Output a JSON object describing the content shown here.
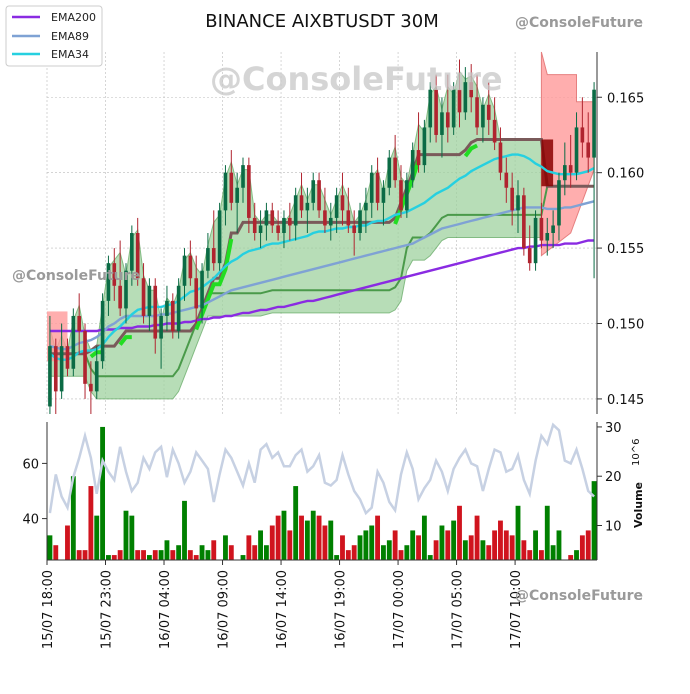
{
  "chart_data": {
    "type": "candlestick",
    "title": "BINANCE AIXBTUSDT 30M",
    "watermark": "@ConsoleFuture",
    "x_tick_labels": [
      "15/07 18:00",
      "15/07 23:00",
      "16/07 04:00",
      "16/07 09:00",
      "16/07 14:00",
      "16/07 19:00",
      "17/07 00:00",
      "17/07 05:00",
      "17/07 10:00"
    ],
    "bar_count": 94,
    "tick_every_bars": 10,
    "price_axis": {
      "range": [
        0.144,
        0.168
      ],
      "ticks": [
        0.145,
        0.15,
        0.155,
        0.16,
        0.165
      ],
      "tick_labels": [
        "0.145",
        "0.150",
        "0.155",
        "0.160",
        "0.165"
      ],
      "side": "right",
      "grid": true
    },
    "volume_axis": {
      "label": "Volume",
      "unit": "10^6",
      "range": [
        3,
        31
      ],
      "ticks": [
        10,
        20,
        30
      ],
      "tick_labels": [
        "10",
        "20",
        "30"
      ],
      "side": "right"
    },
    "oscillator_axis": {
      "range": [
        25,
        75
      ],
      "ticks": [
        40,
        60
      ],
      "tick_labels": [
        "40",
        "60"
      ],
      "side": "left"
    },
    "legend": {
      "placement": "top-left",
      "entries": [
        {
          "name": "EMA200",
          "color": "#8a2be2"
        },
        {
          "name": "EMA89",
          "color": "#7fa2d4"
        },
        {
          "name": "EMA34",
          "color": "#26d0e0"
        }
      ]
    },
    "colors": {
      "up": "#0b6b45",
      "down": "#b0242f",
      "vol_up": "#008000",
      "vol_down": "#d0141e",
      "oscillator": "#c7d1e3",
      "green_zone": "#9fd29f",
      "red_zone": "#ff9a9a",
      "grid": "#bbbbbb"
    },
    "candles": [
      [
        0.1445,
        0.1505,
        0.144,
        0.1485
      ],
      [
        0.1485,
        0.149,
        0.144,
        0.1455
      ],
      [
        0.1455,
        0.15,
        0.145,
        0.1485
      ],
      [
        0.1485,
        0.149,
        0.1465,
        0.147
      ],
      [
        0.147,
        0.151,
        0.1465,
        0.1505
      ],
      [
        0.1505,
        0.152,
        0.148,
        0.1495
      ],
      [
        0.1495,
        0.15,
        0.145,
        0.146
      ],
      [
        0.146,
        0.1475,
        0.144,
        0.1455
      ],
      [
        0.1455,
        0.1485,
        0.145,
        0.1475
      ],
      [
        0.1475,
        0.152,
        0.147,
        0.1515
      ],
      [
        0.1515,
        0.1545,
        0.1505,
        0.154
      ],
      [
        0.154,
        0.155,
        0.1515,
        0.1525
      ],
      [
        0.1525,
        0.1555,
        0.1505,
        0.151
      ],
      [
        0.151,
        0.154,
        0.15,
        0.1535
      ],
      [
        0.1535,
        0.1565,
        0.1525,
        0.156
      ],
      [
        0.156,
        0.157,
        0.1525,
        0.153
      ],
      [
        0.153,
        0.154,
        0.15,
        0.1505
      ],
      [
        0.1505,
        0.153,
        0.1495,
        0.1525
      ],
      [
        0.1525,
        0.153,
        0.148,
        0.149
      ],
      [
        0.149,
        0.151,
        0.147,
        0.1505
      ],
      [
        0.1505,
        0.1525,
        0.1495,
        0.1515
      ],
      [
        0.1515,
        0.152,
        0.149,
        0.1495
      ],
      [
        0.1495,
        0.153,
        0.149,
        0.1525
      ],
      [
        0.1525,
        0.155,
        0.1515,
        0.1545
      ],
      [
        0.1545,
        0.1555,
        0.1525,
        0.153
      ],
      [
        0.153,
        0.1545,
        0.15,
        0.151
      ],
      [
        0.151,
        0.154,
        0.15,
        0.1535
      ],
      [
        0.1535,
        0.156,
        0.153,
        0.155
      ],
      [
        0.155,
        0.1575,
        0.1535,
        0.154
      ],
      [
        0.154,
        0.158,
        0.1535,
        0.1575
      ],
      [
        0.1575,
        0.1605,
        0.1565,
        0.16
      ],
      [
        0.16,
        0.1615,
        0.1575,
        0.158
      ],
      [
        0.158,
        0.16,
        0.156,
        0.159
      ],
      [
        0.159,
        0.161,
        0.158,
        0.1605
      ],
      [
        0.1605,
        0.161,
        0.156,
        0.157
      ],
      [
        0.157,
        0.158,
        0.1555,
        0.156
      ],
      [
        0.156,
        0.1575,
        0.155,
        0.1565
      ],
      [
        0.1565,
        0.158,
        0.1555,
        0.1575
      ],
      [
        0.1575,
        0.158,
        0.156,
        0.1565
      ],
      [
        0.1565,
        0.1575,
        0.1555,
        0.156
      ],
      [
        0.156,
        0.1575,
        0.155,
        0.157
      ],
      [
        0.157,
        0.158,
        0.1555,
        0.1565
      ],
      [
        0.1565,
        0.159,
        0.1555,
        0.1585
      ],
      [
        0.1585,
        0.16,
        0.157,
        0.1575
      ],
      [
        0.1575,
        0.159,
        0.156,
        0.158
      ],
      [
        0.158,
        0.16,
        0.1575,
        0.1595
      ],
      [
        0.1595,
        0.16,
        0.157,
        0.1575
      ],
      [
        0.1575,
        0.159,
        0.156,
        0.1565
      ],
      [
        0.1565,
        0.158,
        0.1555,
        0.157
      ],
      [
        0.157,
        0.159,
        0.156,
        0.1585
      ],
      [
        0.1585,
        0.16,
        0.1565,
        0.1575
      ],
      [
        0.1575,
        0.159,
        0.156,
        0.1565
      ],
      [
        0.1565,
        0.1575,
        0.1545,
        0.156
      ],
      [
        0.156,
        0.158,
        0.1555,
        0.1575
      ],
      [
        0.1575,
        0.159,
        0.156,
        0.158
      ],
      [
        0.158,
        0.1605,
        0.157,
        0.16
      ],
      [
        0.16,
        0.161,
        0.1575,
        0.158
      ],
      [
        0.158,
        0.1595,
        0.1565,
        0.159
      ],
      [
        0.159,
        0.1615,
        0.1585,
        0.161
      ],
      [
        0.161,
        0.1625,
        0.159,
        0.1595
      ],
      [
        0.1595,
        0.1605,
        0.157,
        0.1575
      ],
      [
        0.1575,
        0.16,
        0.157,
        0.1595
      ],
      [
        0.1595,
        0.162,
        0.159,
        0.1615
      ],
      [
        0.1615,
        0.164,
        0.16,
        0.1605
      ],
      [
        0.1605,
        0.1635,
        0.16,
        0.163
      ],
      [
        0.163,
        0.166,
        0.162,
        0.1655
      ],
      [
        0.1655,
        0.1665,
        0.162,
        0.1625
      ],
      [
        0.1625,
        0.165,
        0.161,
        0.164
      ],
      [
        0.164,
        0.1665,
        0.162,
        0.163
      ],
      [
        0.163,
        0.166,
        0.1625,
        0.1655
      ],
      [
        0.1655,
        0.1675,
        0.163,
        0.164
      ],
      [
        0.164,
        0.167,
        0.1635,
        0.166
      ],
      [
        0.166,
        0.1672,
        0.164,
        0.165
      ],
      [
        0.165,
        0.1665,
        0.1625,
        0.163
      ],
      [
        0.163,
        0.165,
        0.162,
        0.1645
      ],
      [
        0.1645,
        0.166,
        0.1625,
        0.1635
      ],
      [
        0.1635,
        0.165,
        0.1615,
        0.162
      ],
      [
        0.162,
        0.163,
        0.1595,
        0.16
      ],
      [
        0.16,
        0.161,
        0.158,
        0.159
      ],
      [
        0.159,
        0.16,
        0.1565,
        0.1575
      ],
      [
        0.1575,
        0.1595,
        0.156,
        0.1585
      ],
      [
        0.1585,
        0.159,
        0.1545,
        0.155
      ],
      [
        0.155,
        0.1565,
        0.1535,
        0.154
      ],
      [
        0.154,
        0.1575,
        0.1535,
        0.157
      ],
      [
        0.157,
        0.158,
        0.155,
        0.1555
      ],
      [
        0.1555,
        0.157,
        0.1545,
        0.156
      ],
      [
        0.156,
        0.1575,
        0.155,
        0.1565
      ],
      [
        0.1565,
        0.16,
        0.1555,
        0.1595
      ],
      [
        0.1595,
        0.162,
        0.1585,
        0.1605
      ],
      [
        0.1605,
        0.1625,
        0.159,
        0.16
      ],
      [
        0.16,
        0.164,
        0.1595,
        0.163
      ],
      [
        0.163,
        0.165,
        0.161,
        0.162
      ],
      [
        0.162,
        0.164,
        0.16,
        0.161
      ],
      [
        0.161,
        0.166,
        0.153,
        0.1655
      ]
    ],
    "ema200": [
      0.1495,
      0.1495,
      0.1495,
      0.1495,
      0.1495,
      0.1495,
      0.1495,
      0.1495,
      0.1495,
      0.1496,
      0.1496,
      0.1496,
      0.1497,
      0.1497,
      0.1497,
      0.1498,
      0.1498,
      0.1498,
      0.1499,
      0.1499,
      0.15,
      0.15,
      0.15,
      0.1501,
      0.1501,
      0.1502,
      0.1503,
      0.1503,
      0.1504,
      0.1504,
      0.1505,
      0.1505,
      0.1506,
      0.1507,
      0.1507,
      0.1508,
      0.1509,
      0.1509,
      0.151,
      0.1511,
      0.1511,
      0.1512,
      0.1513,
      0.1514,
      0.1515,
      0.1515,
      0.1516,
      0.1517,
      0.1518,
      0.1519,
      0.152,
      0.1521,
      0.1522,
      0.1523,
      0.1524,
      0.1525,
      0.1526,
      0.1527,
      0.1528,
      0.1529,
      0.153,
      0.1531,
      0.1532,
      0.1533,
      0.1534,
      0.1535,
      0.1536,
      0.1537,
      0.1538,
      0.1539,
      0.154,
      0.1541,
      0.1542,
      0.1543,
      0.1544,
      0.1545,
      0.1546,
      0.1547,
      0.1548,
      0.1549,
      0.155,
      0.155,
      0.1551,
      0.1551,
      0.1552,
      0.1552,
      0.1552,
      0.1552,
      0.1553,
      0.1553,
      0.1553,
      0.1554,
      0.1555,
      0.1555
    ],
    "ema89": [
      0.1485,
      0.1484,
      0.1483,
      0.1483,
      0.1485,
      0.1487,
      0.1488,
      0.1489,
      0.1491,
      0.1494,
      0.1498,
      0.15,
      0.1503,
      0.1505,
      0.1505,
      0.1505,
      0.1505,
      0.1505,
      0.1505,
      0.1506,
      0.1506,
      0.1507,
      0.1508,
      0.1509,
      0.151,
      0.1511,
      0.1512,
      0.1514,
      0.1516,
      0.1518,
      0.152,
      0.1522,
      0.1523,
      0.1524,
      0.1525,
      0.1526,
      0.1527,
      0.1528,
      0.1529,
      0.153,
      0.1531,
      0.1532,
      0.1533,
      0.1534,
      0.1535,
      0.1536,
      0.1537,
      0.1538,
      0.1539,
      0.154,
      0.1541,
      0.1542,
      0.1543,
      0.1544,
      0.1545,
      0.1546,
      0.1547,
      0.1548,
      0.1549,
      0.155,
      0.1551,
      0.1552,
      0.1553,
      0.1555,
      0.1557,
      0.1559,
      0.1561,
      0.1563,
      0.1564,
      0.1565,
      0.1566,
      0.1567,
      0.1568,
      0.1569,
      0.157,
      0.1571,
      0.1572,
      0.1573,
      0.1574,
      0.1575,
      0.1576,
      0.1577,
      0.1577,
      0.1577,
      0.1577,
      0.1576,
      0.1576,
      0.1576,
      0.1577,
      0.1577,
      0.1578,
      0.1579,
      0.158,
      0.1581
    ],
    "ema34": [
      0.148,
      0.1477,
      0.1476,
      0.1476,
      0.1478,
      0.1481,
      0.1482,
      0.1482,
      0.1483,
      0.1486,
      0.1491,
      0.1495,
      0.1498,
      0.1502,
      0.1506,
      0.1509,
      0.151,
      0.1511,
      0.1511,
      0.1511,
      0.1512,
      0.1513,
      0.1515,
      0.1518,
      0.1521,
      0.1522,
      0.1524,
      0.1527,
      0.153,
      0.1534,
      0.1538,
      0.1541,
      0.1543,
      0.1546,
      0.1548,
      0.1549,
      0.155,
      0.1552,
      0.1553,
      0.1553,
      0.1554,
      0.1555,
      0.1556,
      0.1557,
      0.1558,
      0.156,
      0.1561,
      0.1561,
      0.1562,
      0.1563,
      0.1563,
      0.1564,
      0.1564,
      0.1565,
      0.1565,
      0.1567,
      0.1568,
      0.1568,
      0.157,
      0.1572,
      0.1573,
      0.1574,
      0.1576,
      0.1578,
      0.158,
      0.1583,
      0.1586,
      0.1588,
      0.159,
      0.1593,
      0.1596,
      0.1598,
      0.1601,
      0.1603,
      0.1605,
      0.1607,
      0.1609,
      0.161,
      0.1611,
      0.1612,
      0.1612,
      0.1611,
      0.1609,
      0.1606,
      0.1604,
      0.1601,
      0.16,
      0.1599,
      0.1599,
      0.1599,
      0.1599,
      0.16,
      0.1601,
      0.1603
    ],
    "ladder_upper": [
      0.148,
      0.148,
      0.148,
      0.148,
      0.148,
      0.148,
      0.148,
      0.1482,
      0.1485,
      0.1485,
      0.1485,
      0.1485,
      0.149,
      0.1495,
      0.1495,
      0.1495,
      0.1495,
      0.1495,
      0.1495,
      0.1495,
      0.1495,
      0.1495,
      0.1495,
      0.1495,
      0.1495,
      0.15,
      0.151,
      0.152,
      0.153,
      0.153,
      0.154,
      0.156,
      0.156,
      0.1567,
      0.1567,
      0.1567,
      0.1567,
      0.1567,
      0.1567,
      0.1567,
      0.1567,
      0.1567,
      0.1567,
      0.1567,
      0.1567,
      0.1567,
      0.1567,
      0.1567,
      0.1567,
      0.1567,
      0.1567,
      0.1567,
      0.1567,
      0.1567,
      0.1567,
      0.1567,
      0.1567,
      0.1567,
      0.1567,
      0.157,
      0.158,
      0.159,
      0.16,
      0.1612,
      0.1612,
      0.1612,
      0.1612,
      0.1612,
      0.1612,
      0.1612,
      0.1612,
      0.1615,
      0.162,
      0.1622,
      0.1622,
      0.1622,
      0.1622,
      0.1622,
      0.1622,
      0.1622,
      0.1622,
      0.1622,
      0.1622,
      0.1622,
      0.1622,
      0.1591,
      0.1591,
      0.1591,
      0.1591,
      0.1591,
      0.1591,
      0.1591,
      0.1591,
      0.1591
    ],
    "ladder_lower": [
      0.148,
      0.148,
      0.148,
      0.148,
      0.148,
      0.148,
      0.148,
      0.147,
      0.1465,
      0.1465,
      0.1465,
      0.1465,
      0.1465,
      0.1465,
      0.1465,
      0.1465,
      0.1465,
      0.1465,
      0.1465,
      0.1465,
      0.1465,
      0.1465,
      0.147,
      0.148,
      0.149,
      0.15,
      0.151,
      0.152,
      0.152,
      0.152,
      0.152,
      0.152,
      0.152,
      0.152,
      0.152,
      0.152,
      0.152,
      0.1521,
      0.1522,
      0.1522,
      0.1522,
      0.1522,
      0.1522,
      0.1522,
      0.1522,
      0.1522,
      0.1522,
      0.1522,
      0.1522,
      0.1522,
      0.1522,
      0.1522,
      0.1522,
      0.1522,
      0.1522,
      0.1522,
      0.1522,
      0.1522,
      0.1522,
      0.1524,
      0.153,
      0.155,
      0.1557,
      0.1557,
      0.1557,
      0.156,
      0.1565,
      0.157,
      0.1572,
      0.1572,
      0.1572,
      0.1572,
      0.1572,
      0.1572,
      0.1572,
      0.1572,
      0.1572,
      0.1572,
      0.1572,
      0.1572,
      0.1572,
      0.1572,
      0.1572,
      0.1572,
      0.1572,
      0.1591,
      0.1591,
      0.1591,
      0.1591,
      0.1591,
      0.1591,
      0.1591,
      0.1591,
      0.1591
    ],
    "volume": [
      8,
      6,
      3,
      10,
      20,
      5,
      5,
      18,
      12,
      30,
      4,
      4,
      5,
      13,
      12,
      5,
      5,
      4,
      5,
      5,
      7,
      5,
      6,
      15,
      5,
      4,
      6,
      5,
      7,
      3,
      8,
      6,
      3,
      4,
      8,
      6,
      9,
      6,
      10,
      12,
      13,
      9,
      18,
      12,
      11,
      13,
      12,
      10,
      11,
      4,
      8,
      5,
      6,
      8,
      9,
      10,
      12,
      6,
      7,
      9,
      5,
      6,
      9,
      8,
      12,
      4,
      7,
      10,
      9,
      11,
      14,
      7,
      8,
      12,
      7,
      6,
      9,
      11,
      9,
      8,
      14,
      7,
      5,
      9,
      5,
      14,
      6,
      9,
      3,
      4,
      5,
      8,
      9,
      19
    ],
    "oscillator": [
      42,
      56,
      48,
      44,
      55,
      62,
      70,
      62,
      49,
      61,
      57,
      54,
      66,
      57,
      50,
      53,
      62,
      58,
      64,
      66,
      55,
      65,
      60,
      53,
      57,
      64,
      61,
      58,
      46,
      56,
      65,
      62,
      57,
      52,
      60,
      53,
      65,
      67,
      62,
      64,
      59,
      59,
      63,
      65,
      57,
      59,
      63,
      53,
      52,
      54,
      63,
      56,
      50,
      47,
      42,
      44,
      57,
      53,
      46,
      43,
      56,
      64,
      58,
      47,
      51,
      54,
      61,
      57,
      50,
      58,
      62,
      65,
      60,
      59,
      50,
      58,
      65,
      64,
      57,
      58,
      63,
      54,
      49,
      61,
      70,
      67,
      74,
      72,
      61,
      60,
      65,
      58,
      50,
      48
    ]
  }
}
